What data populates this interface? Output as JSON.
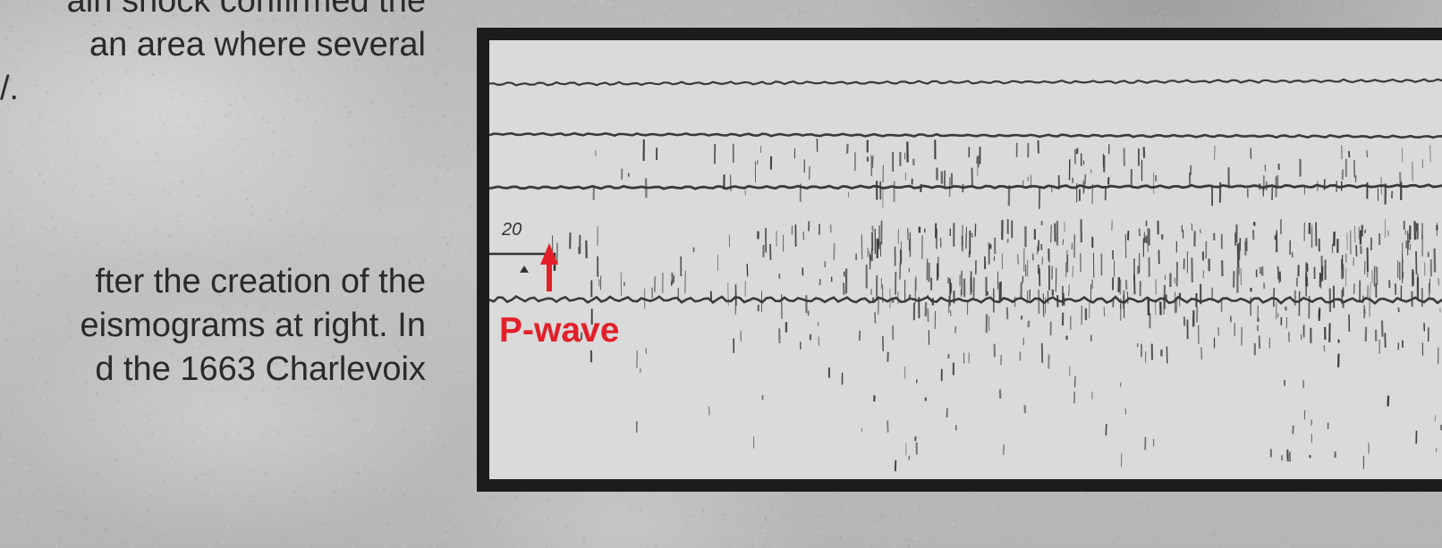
{
  "article": {
    "paragraph_top": [
      "ain shock confirmed the",
      "an area where several",
      "/."
    ],
    "paragraph_bottom": [
      "fter the creation of the",
      "eismograms at right. In",
      "d the 1663 Charlevoix"
    ]
  },
  "seismogram": {
    "scale_label": "20",
    "annotation": {
      "label": "P-wave",
      "color": "#e3202a"
    }
  },
  "colors": {
    "frame": "#1c1c1c",
    "paper": "#dadada",
    "trace": "#3a3a3a"
  }
}
